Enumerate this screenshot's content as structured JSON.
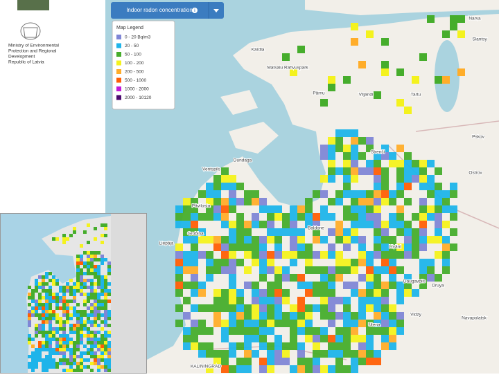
{
  "header": {
    "logo_text": [
      "Ministry of Environmental",
      "Protection and Regional",
      "Development",
      "Republic of Latvia"
    ]
  },
  "toolbar": {
    "layer_button": "Indoor radon concentration"
  },
  "legend": {
    "title": "Map Legend",
    "items": [
      {
        "label": "0 - 20 Bq/m3",
        "color": "#7f86d6"
      },
      {
        "label": "20 - 50",
        "color": "#1eb4ea"
      },
      {
        "label": "50 - 100",
        "color": "#46ad2c"
      },
      {
        "label": "100 - 200",
        "color": "#f4f21e"
      },
      {
        "label": "200 - 500",
        "color": "#ffad2a"
      },
      {
        "label": "500 - 1000",
        "color": "#ff5e05"
      },
      {
        "label": "1000 - 2000",
        "color": "#c21ad8"
      },
      {
        "label": "2000 - 10120",
        "color": "#4b0a6e"
      }
    ]
  },
  "map": {
    "places": [
      "Kärdla",
      "Matsalu Rahvuspark",
      "Pärnu",
      "Viljandi",
      "Tartu",
      "Narva",
      "Slantsy",
      "Pskov",
      "Ostrov",
      "Strenči",
      "Dundaga",
      "Ventspils",
      "Pāvilosta",
      "Grobiņa",
      "Liepāja",
      "Baldone",
      "Līvāni",
      "Daugavpils",
      "Druya",
      "Vidzy",
      "Utena",
      "Navapolatsk",
      "KALININGRAD"
    ]
  }
}
